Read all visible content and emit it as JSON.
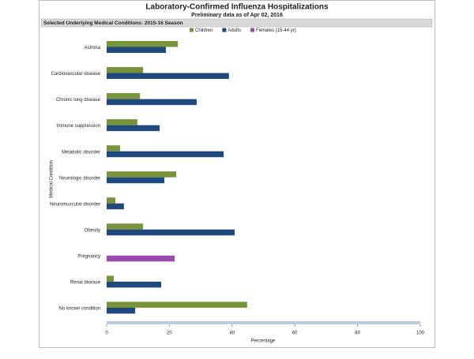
{
  "chart_data": {
    "type": "bar",
    "orientation": "horizontal",
    "title": "Laboratory-Confirmed Influenza Hospitalizations",
    "subtitle": "Preliminary data as of Apr 02, 2016",
    "panel_title": "Selected Underlying Medical Conditions: 2015-16 Season",
    "x_label": "Percentage",
    "y_label": "Medical Condition",
    "categories": [
      "Asthma",
      "Cardiovascular disease",
      "Chronic lung disease",
      "Immune suppression",
      "Metabolic disorder",
      "Neurologic disorder",
      "Neuromuscular disorder",
      "Obesity",
      "Pregnancy",
      "Renal disease",
      "No known condition"
    ],
    "series": [
      {
        "name": "Children",
        "color": "#77933c",
        "values": [
          22.7,
          11.6,
          10.6,
          9.8,
          4.3,
          22.2,
          2.8,
          11.6,
          null,
          2.3,
          44.8
        ]
      },
      {
        "name": "Adults",
        "color": "#1f497d",
        "values": [
          18.9,
          39.0,
          28.7,
          16.9,
          37.3,
          18.4,
          5.5,
          40.8,
          null,
          17.4,
          9.1
        ]
      },
      {
        "name": "Females (15-44 yr)",
        "color": "#9b4bb0",
        "values": [
          null,
          null,
          null,
          null,
          null,
          null,
          null,
          null,
          21.7,
          null,
          null
        ]
      }
    ],
    "xlim": [
      0,
      100
    ],
    "xticks": [
      0,
      20,
      40,
      60,
      80,
      100
    ],
    "grid": false
  }
}
